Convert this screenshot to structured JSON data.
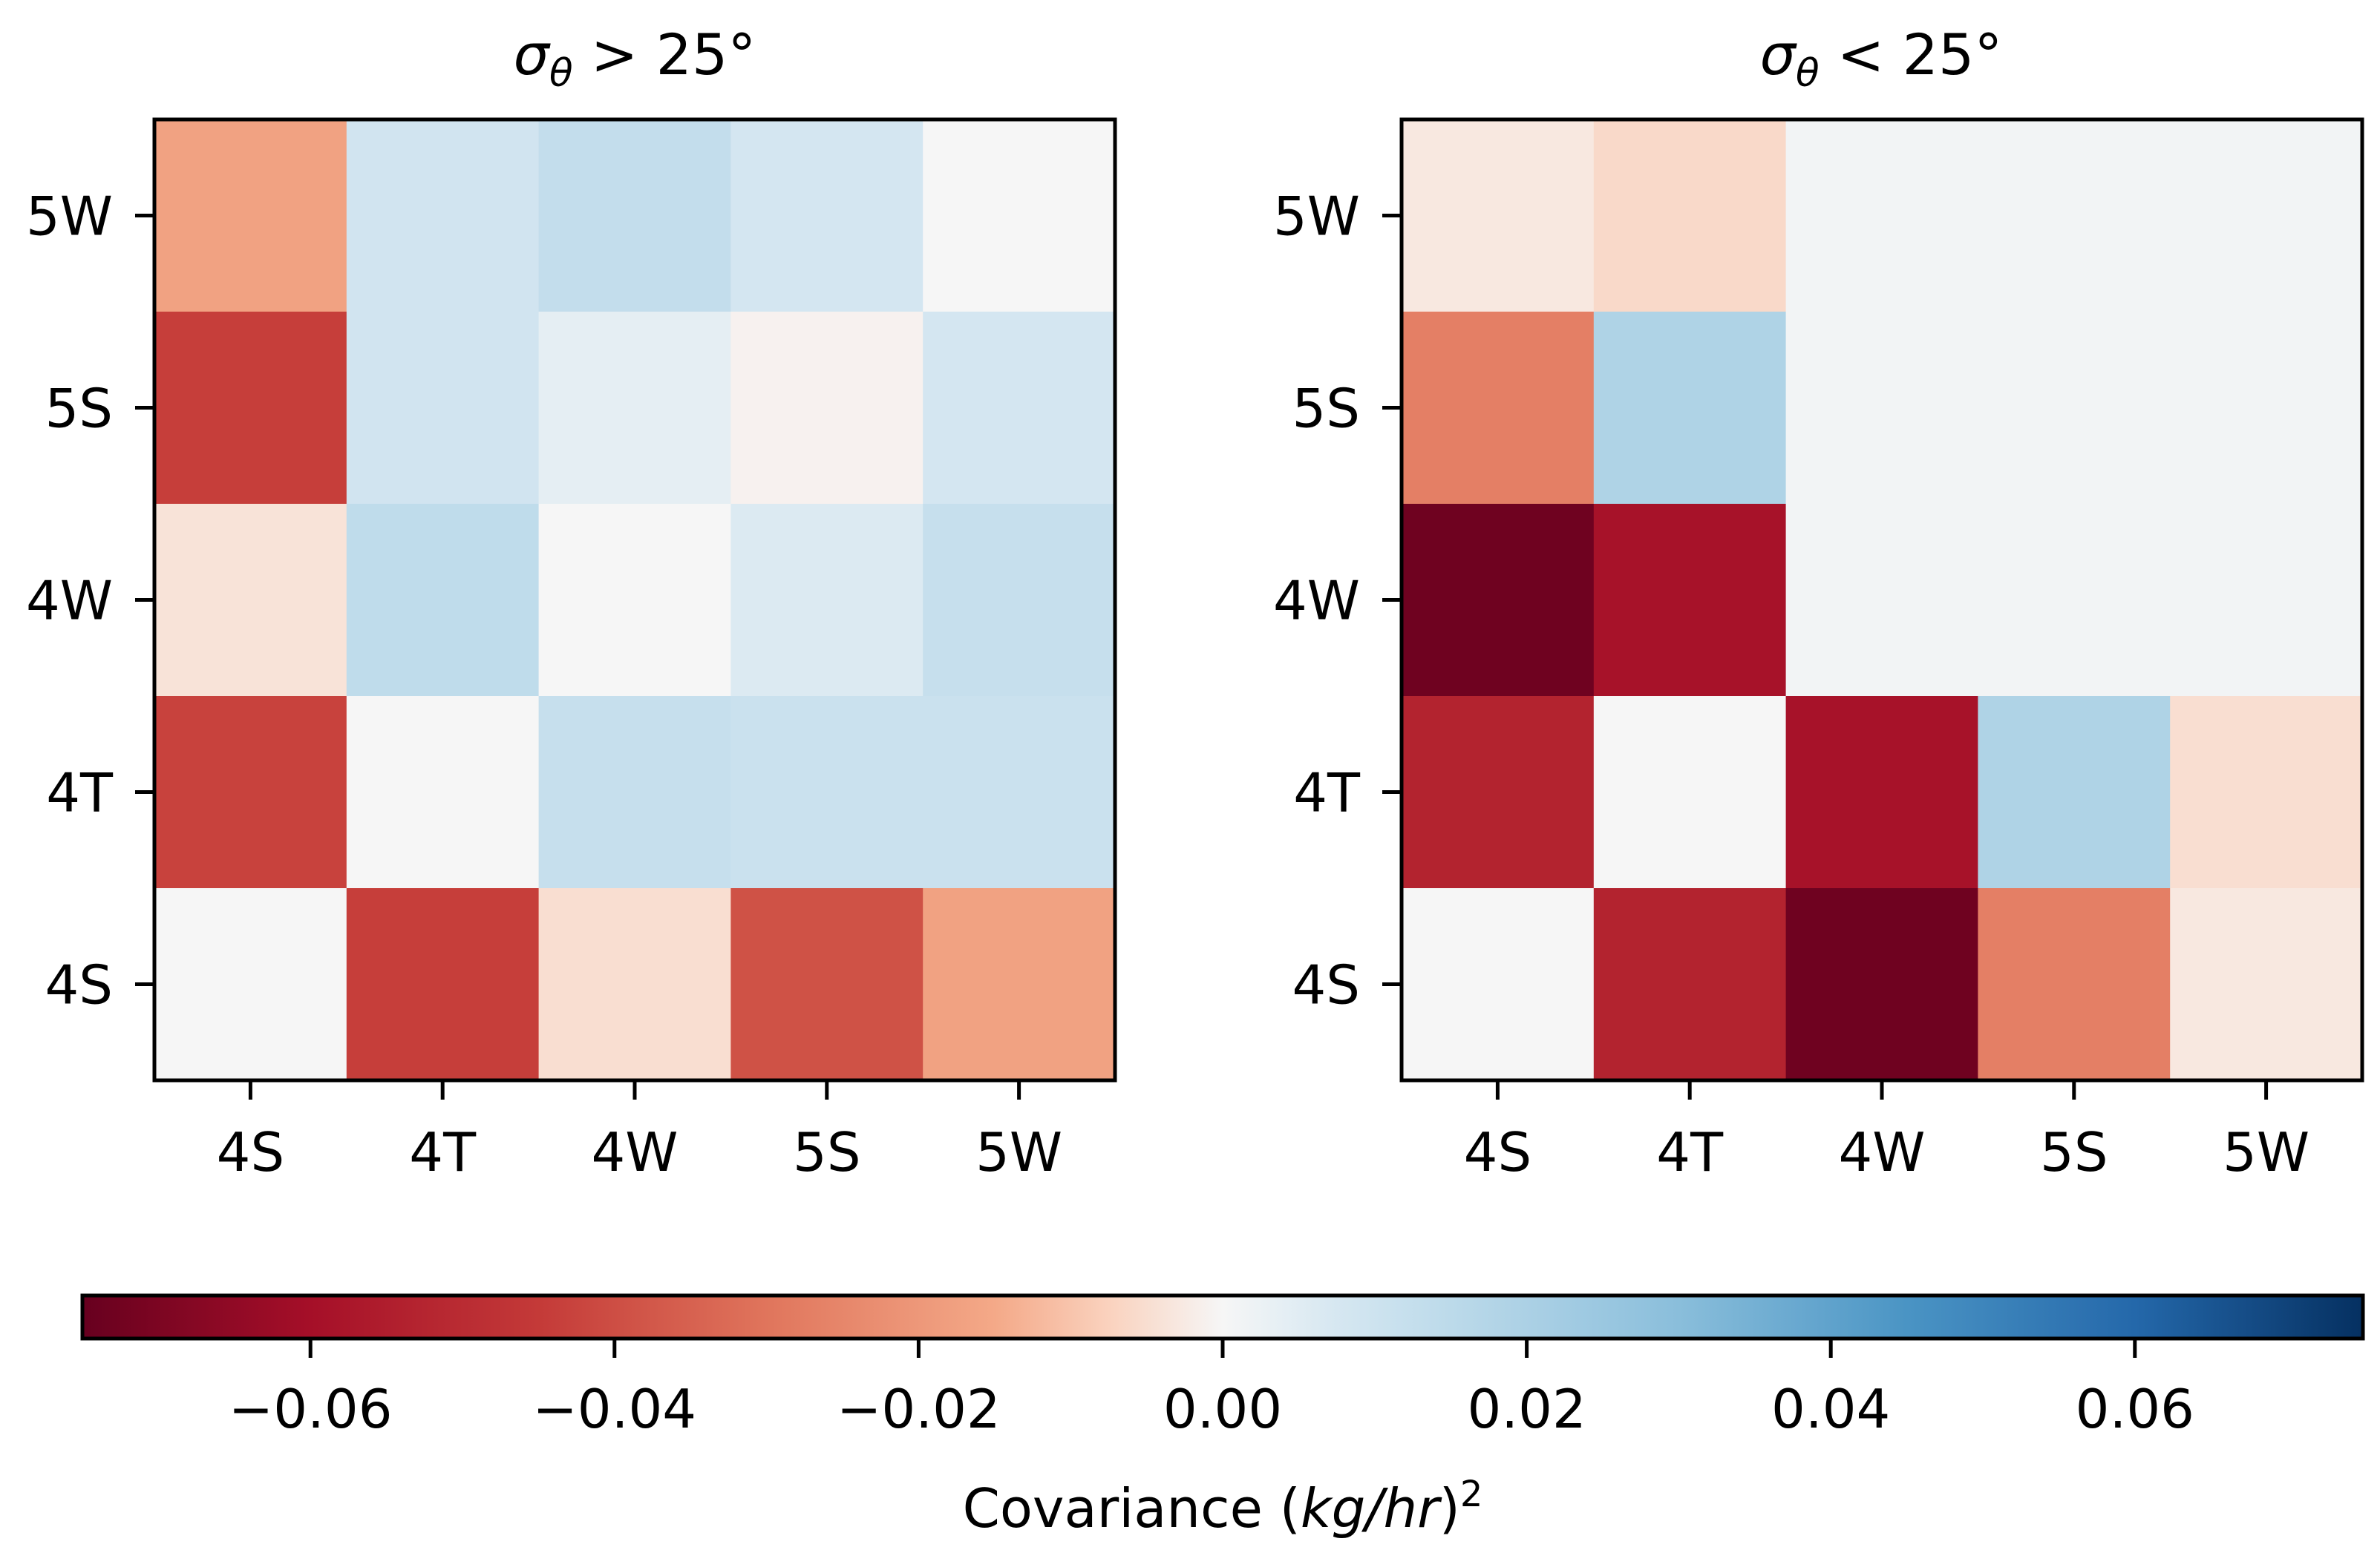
{
  "chart_data": {
    "type": "heatmap",
    "colormap": "RdBu",
    "vmin": -0.075,
    "vmax": 0.075,
    "panels": [
      {
        "title_var": "σ",
        "title_sub": "θ",
        "title_rest": " > 25°",
        "row_labels": [
          "5W",
          "5S",
          "4W",
          "4T",
          "4S"
        ],
        "col_labels": [
          "4S",
          "4T",
          "4W",
          "5S",
          "5W"
        ],
        "values": [
          [
            -0.017,
            0.009,
            0.013,
            0.008,
            0.0
          ],
          [
            -0.044,
            0.009,
            0.004,
            -0.001,
            0.008
          ],
          [
            -0.004,
            0.014,
            0.0,
            0.006,
            0.012
          ],
          [
            -0.043,
            0.0,
            0.012,
            0.011,
            0.011
          ],
          [
            0.0,
            -0.044,
            -0.005,
            -0.039,
            -0.017
          ]
        ]
      },
      {
        "title_var": "σ",
        "title_sub": "θ",
        "title_rest": " < 25°",
        "row_labels": [
          "5W",
          "5S",
          "4W",
          "4T",
          "4S"
        ],
        "col_labels": [
          "4S",
          "4T",
          "4W",
          "5S",
          "5W"
        ],
        "values": [
          [
            -0.003,
            -0.006,
            0.001,
            0.001,
            0.001
          ],
          [
            -0.027,
            0.019,
            0.001,
            0.001,
            0.001
          ],
          [
            -0.073,
            -0.059,
            0.001,
            0.001,
            0.001
          ],
          [
            -0.053,
            0.0,
            -0.059,
            0.019,
            -0.005
          ],
          [
            0.0,
            -0.053,
            -0.073,
            -0.027,
            -0.003
          ]
        ]
      }
    ],
    "colorbar": {
      "ticks": [
        -0.06,
        -0.04,
        -0.02,
        0.0,
        0.02,
        0.04,
        0.06
      ],
      "tick_labels": [
        "−0.06",
        "−0.04",
        "−0.02",
        "0.00",
        "0.02",
        "0.04",
        "0.06"
      ],
      "label_text": "Covariance (",
      "label_units": "kg/hr",
      "label_close": ")",
      "label_exp": "2"
    }
  }
}
